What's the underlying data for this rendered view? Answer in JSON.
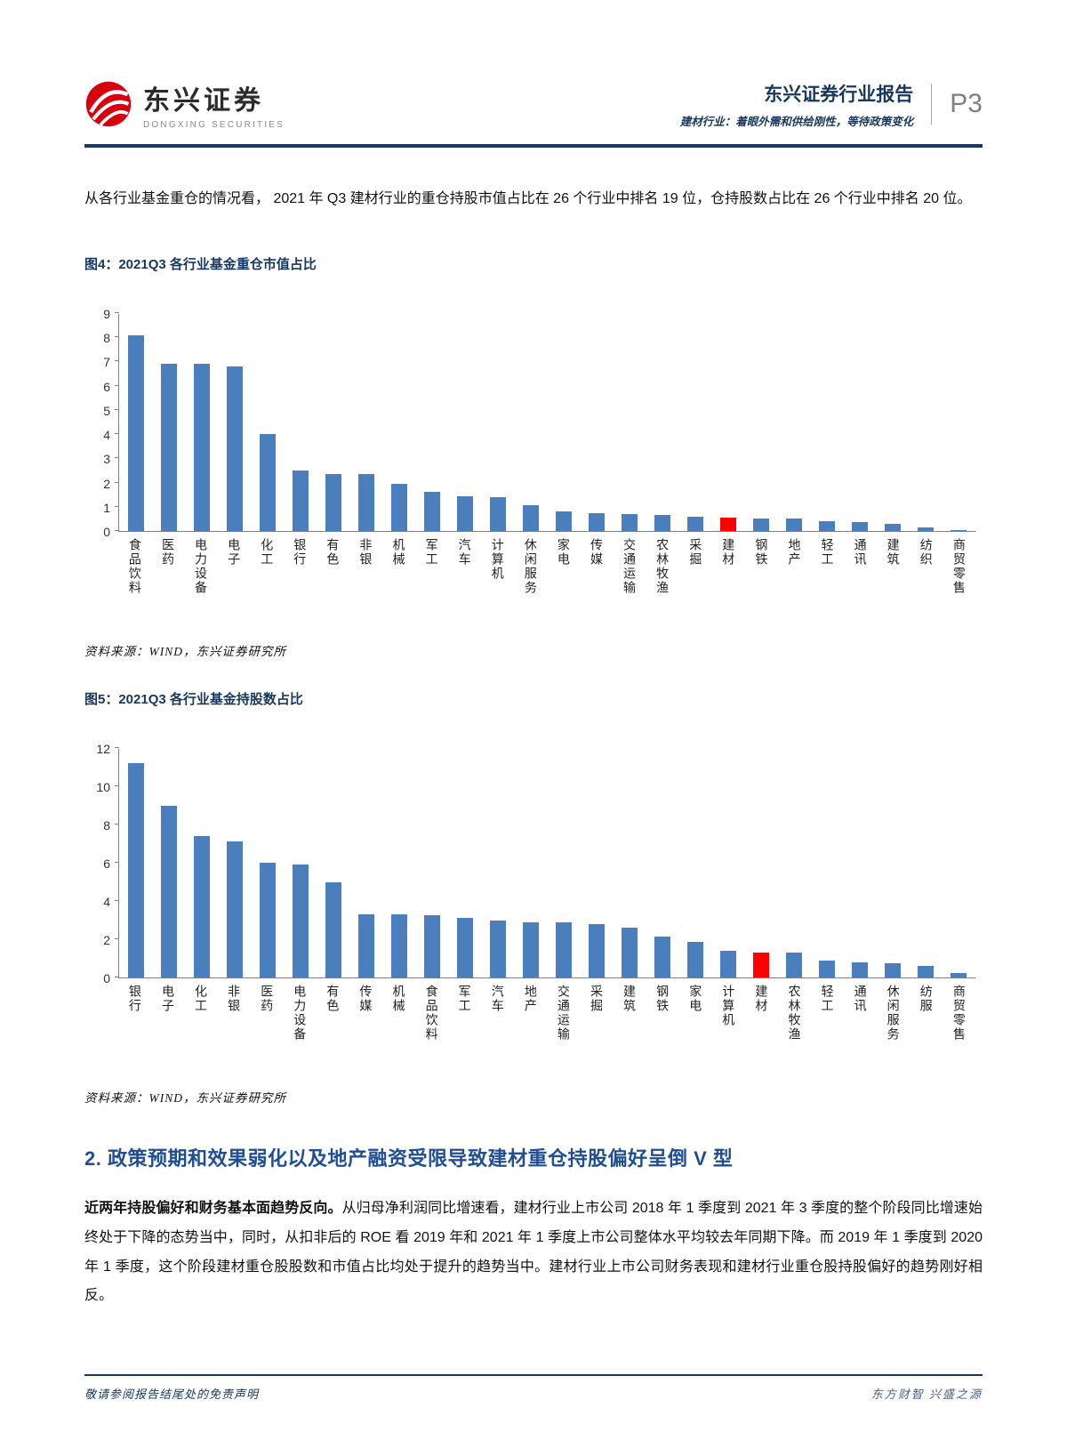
{
  "header": {
    "logo_cn": "东兴证券",
    "logo_en": "DONGXING SECURITIES",
    "report_title": "东兴证券行业报告",
    "report_subtitle": "建材行业：着眼外需和供给刚性，等待政策变化",
    "page_number": "P3"
  },
  "intro_paragraph": "从各行业基金重仓的情况看， 2021 年 Q3 建材行业的重仓持股市值占比在 26 个行业中排名 19 位，仓持股数占比在 26 个行业中排名 20 位。",
  "figure4": {
    "title": "图4：2021Q3 各行业基金重仓市值占比",
    "source": "资料来源：WIND，东兴证券研究所"
  },
  "figure5": {
    "title": "图5：2021Q3 各行业基金持股数占比",
    "source": "资料来源：WIND，东兴证券研究所"
  },
  "section2": {
    "heading": "2. 政策预期和效果弱化以及地产融资受限导致建材重仓持股偏好呈倒 V 型",
    "lead_bold": "近两年持股偏好和财务基本面趋势反向。",
    "body": "从归母净利润同比增速看，建材行业上市公司 2018 年 1 季度到 2021 年 3 季度的整个阶段同比增速始终处于下降的态势当中，同时，从扣非后的 ROE 看 2019 年和 2021 年 1 季度上市公司整体水平均较去年同期下降。而 2019 年 1 季度到 2020 年 1 季度，这个阶段建材重仓股股数和市值占比均处于提升的趋势当中。建材行业上市公司财务表现和建材行业重仓股持股偏好的趋势刚好相反。"
  },
  "footer": {
    "left": "敬请参阅报告结尾处的免责声明",
    "right": "东方财智 兴盛之源"
  },
  "colors": {
    "bar": "#4A7EBC",
    "highlight": "#FF0000",
    "navy": "#17375E"
  },
  "chart_data": [
    {
      "type": "bar",
      "title": "2021Q3 各行业基金重仓市值占比",
      "categories": [
        "食品饮料",
        "医药",
        "电力设备",
        "电子",
        "化工",
        "银行",
        "有色",
        "非银",
        "机械",
        "军工",
        "汽车",
        "计算机",
        "休闲服务",
        "家电",
        "传媒",
        "交通运输",
        "农林牧渔",
        "采掘",
        "建材",
        "钢铁",
        "地产",
        "轻工",
        "通讯",
        "建筑",
        "纺织",
        "商贸零售"
      ],
      "values": [
        8.1,
        6.9,
        6.9,
        6.8,
        4.0,
        2.5,
        2.35,
        2.35,
        1.95,
        1.6,
        1.45,
        1.4,
        1.05,
        0.8,
        0.75,
        0.7,
        0.65,
        0.6,
        0.55,
        0.5,
        0.5,
        0.4,
        0.35,
        0.3,
        0.15,
        0.05
      ],
      "highlight_category": "建材",
      "xlabel": "",
      "ylabel": "",
      "ylim": [
        0,
        9
      ],
      "yticks": [
        0,
        1,
        2,
        3,
        4,
        5,
        6,
        7,
        8,
        9
      ],
      "grid": false,
      "legend": "none"
    },
    {
      "type": "bar",
      "title": "2021Q3 各行业基金持股数占比",
      "categories": [
        "银行",
        "电子",
        "化工",
        "非银",
        "医药",
        "电力设备",
        "有色",
        "传媒",
        "机械",
        "食品饮料",
        "军工",
        "汽车",
        "地产",
        "交通运输",
        "采掘",
        "建筑",
        "钢铁",
        "家电",
        "计算机",
        "建材",
        "农林牧渔",
        "轻工",
        "通讯",
        "休闲服务",
        "纺服",
        "商贸零售"
      ],
      "values": [
        11.2,
        9.0,
        7.4,
        7.1,
        6.0,
        5.9,
        5.0,
        3.3,
        3.3,
        3.25,
        3.1,
        3.0,
        2.9,
        2.9,
        2.8,
        2.6,
        2.15,
        1.85,
        1.4,
        1.3,
        1.3,
        0.9,
        0.8,
        0.75,
        0.6,
        0.25
      ],
      "highlight_category": "建材",
      "xlabel": "",
      "ylabel": "",
      "ylim": [
        0,
        12
      ],
      "yticks": [
        0,
        2,
        4,
        6,
        8,
        10,
        12
      ],
      "grid": false,
      "legend": "none"
    }
  ]
}
